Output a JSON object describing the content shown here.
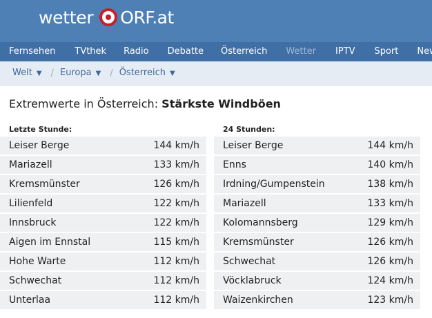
{
  "logo": {
    "wetter": "wetter",
    "orf": "ORF.at"
  },
  "nav": [
    "Fernsehen",
    "TVthek",
    "Radio",
    "Debatte",
    "Österreich",
    "Wetter",
    "IPTV",
    "Sport",
    "News"
  ],
  "breadcrumb": [
    "Welt",
    "Europa",
    "Österreich"
  ],
  "title": {
    "prefix": "Extremwerte in Österreich:",
    "bold": "Stärkste Windböen"
  },
  "left": {
    "heading": "Letzte Stunde:",
    "rows": [
      {
        "place": "Leiser Berge",
        "value": "144 km/h"
      },
      {
        "place": "Mariazell",
        "value": "133 km/h"
      },
      {
        "place": "Kremsmünster",
        "value": "126 km/h"
      },
      {
        "place": "Lilienfeld",
        "value": "122 km/h"
      },
      {
        "place": "Innsbruck",
        "value": "122 km/h"
      },
      {
        "place": "Aigen im Ennstal",
        "value": "115 km/h"
      },
      {
        "place": "Hohe Warte",
        "value": "112 km/h"
      },
      {
        "place": "Schwechat",
        "value": "112 km/h"
      },
      {
        "place": "Unterlaa",
        "value": "112 km/h"
      }
    ]
  },
  "right": {
    "heading": "24 Stunden:",
    "rows": [
      {
        "place": "Leiser Berge",
        "value": "144 km/h"
      },
      {
        "place": "Enns",
        "value": "140 km/h"
      },
      {
        "place": "Irdning/Gumpenstein",
        "value": "138 km/h"
      },
      {
        "place": "Mariazell",
        "value": "133 km/h"
      },
      {
        "place": "Kolomannsberg",
        "value": "129 km/h"
      },
      {
        "place": "Kremsmünster",
        "value": "126 km/h"
      },
      {
        "place": "Schwechat",
        "value": "126 km/h"
      },
      {
        "place": "Vöcklabruck",
        "value": "124 km/h"
      },
      {
        "place": "Waizenkirchen",
        "value": "123 km/h"
      }
    ]
  }
}
